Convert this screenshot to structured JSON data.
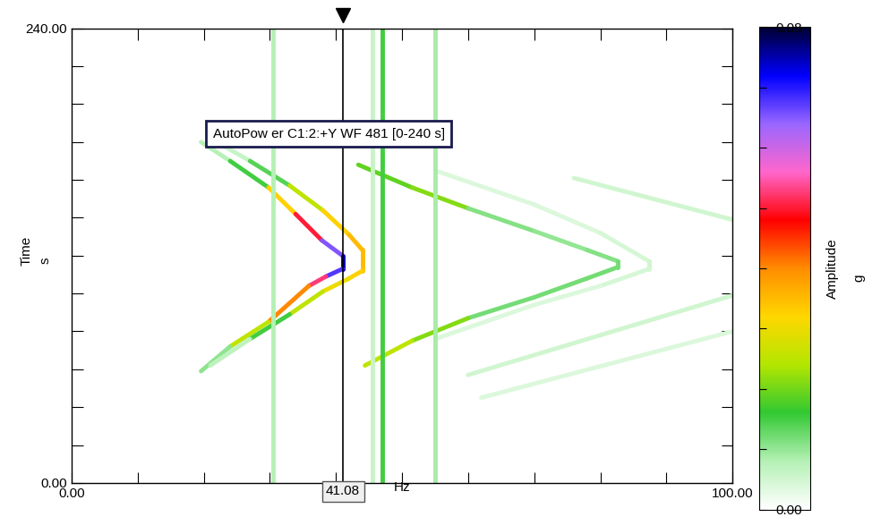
{
  "chart_data": {
    "type": "waterfall",
    "annotation": "AutoPow er C1:2:+Y WF 481 [0-240 s]",
    "x_label": "Hz",
    "y_label": "Time",
    "y_unit": "s",
    "colorbar_label": "Amplitude",
    "colorbar_unit": "g",
    "xlim": [
      0,
      100
    ],
    "xticks": [
      {
        "value": 0,
        "label": "0.00"
      },
      {
        "value": 10,
        "label": null
      },
      {
        "value": 20,
        "label": null
      },
      {
        "value": 30,
        "label": null
      },
      {
        "value": 40,
        "label": null
      },
      {
        "value": 50,
        "label": null
      },
      {
        "value": 60,
        "label": null
      },
      {
        "value": 70,
        "label": null
      },
      {
        "value": 80,
        "label": null
      },
      {
        "value": 90,
        "label": null
      },
      {
        "value": 100,
        "label": "100.00"
      }
    ],
    "ylim": [
      0,
      240
    ],
    "yticks": [
      {
        "value": 0,
        "label": "0.00"
      },
      {
        "value": 20,
        "label": null
      },
      {
        "value": 40,
        "label": null
      },
      {
        "value": 60,
        "label": null
      },
      {
        "value": 80,
        "label": null
      },
      {
        "value": 100,
        "label": null
      },
      {
        "value": 120,
        "label": null
      },
      {
        "value": 140,
        "label": null
      },
      {
        "value": 160,
        "label": null
      },
      {
        "value": 180,
        "label": null
      },
      {
        "value": 200,
        "label": null
      },
      {
        "value": 220,
        "label": null
      },
      {
        "value": 240,
        "label": "240.00"
      }
    ],
    "colorbar_range": [
      0,
      0.08
    ],
    "colorbar_ticks": [
      {
        "value": 0,
        "label": "0.00"
      },
      {
        "value": 0.01,
        "label": null
      },
      {
        "value": 0.02,
        "label": null
      },
      {
        "value": 0.03,
        "label": null
      },
      {
        "value": 0.04,
        "label": null
      },
      {
        "value": 0.05,
        "label": null
      },
      {
        "value": 0.06,
        "label": null
      },
      {
        "value": 0.07,
        "label": null
      },
      {
        "value": 0.08,
        "label": "0.08"
      }
    ],
    "cursor": {
      "value": 41.08,
      "label": "41.08"
    },
    "traces": [
      {
        "frequency": [
          19.6,
          24,
          29.8,
          33.9,
          37.9,
          41.0,
          41.0,
          38.5,
          35.9,
          29.8,
          24,
          19.6
        ],
        "time": [
          180,
          170,
          156,
          142,
          128,
          120,
          113,
          109,
          104,
          85,
          72,
          59
        ],
        "amplitude": [
          0.005,
          0.01,
          0.02,
          0.045,
          0.055,
          0.075,
          0.075,
          0.06,
          0.045,
          0.035,
          0.015,
          0.006
        ]
      },
      {
        "frequency": [
          21,
          27,
          33,
          38,
          42,
          44,
          44,
          42,
          38,
          33,
          27,
          21
        ],
        "time": [
          182,
          170,
          157,
          144,
          131,
          123,
          112,
          108,
          101,
          89,
          76,
          62
        ],
        "amplitude": [
          0.004,
          0.008,
          0.02,
          0.03,
          0.035,
          0.035,
          0.035,
          0.03,
          0.03,
          0.02,
          0.01,
          0.004
        ]
      },
      {
        "frequency": [
          43.4,
          51.5,
          60,
          70,
          78,
          82.7,
          82.7,
          78,
          70,
          60,
          51.5,
          44.4
        ],
        "time": [
          168,
          156,
          145,
          133,
          123,
          117,
          114,
          108,
          98,
          87,
          75,
          62
        ],
        "amplitude": [
          0.008,
          0.03,
          0.012,
          0.01,
          0.01,
          0.012,
          0.012,
          0.012,
          0.012,
          0.012,
          0.03,
          0.02
        ]
      },
      {
        "frequency": [
          55,
          70,
          80,
          87.4,
          87.4,
          80,
          70,
          55
        ],
        "time": [
          165,
          147,
          132,
          117,
          113,
          104,
          94,
          76
        ],
        "amplitude": [
          0.004,
          0.004,
          0.004,
          0.005,
          0.005,
          0.004,
          0.004,
          0.004
        ]
      },
      {
        "frequency": [
          30.5,
          30.5
        ],
        "time": [
          0,
          240
        ],
        "amplitude": [
          0.008,
          0.008
        ]
      },
      {
        "frequency": [
          45.5,
          45.5
        ],
        "time": [
          0,
          240
        ],
        "amplitude": [
          0.006,
          0.006
        ]
      },
      {
        "frequency": [
          47,
          47
        ],
        "time": [
          0,
          240
        ],
        "amplitude": [
          0.015,
          0.015
        ]
      },
      {
        "frequency": [
          55,
          55
        ],
        "time": [
          0,
          240
        ],
        "amplitude": [
          0.009,
          0.009
        ]
      },
      {
        "frequency": [
          60,
          100
        ],
        "time": [
          57,
          99
        ],
        "amplitude": [
          0.005,
          0.005
        ]
      },
      {
        "frequency": [
          62,
          100
        ],
        "time": [
          45,
          80
        ],
        "amplitude": [
          0.004,
          0.004
        ]
      },
      {
        "frequency": [
          76,
          100
        ],
        "time": [
          161,
          139
        ],
        "amplitude": [
          0.005,
          0.005
        ]
      }
    ]
  }
}
